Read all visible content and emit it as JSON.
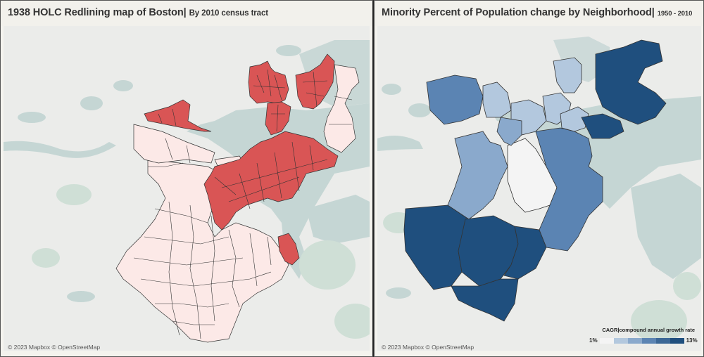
{
  "left": {
    "title": "1938 HOLC Redlining map of Boston",
    "subtitle": "By 2010 census tract",
    "attribution": "© 2023 Mapbox © OpenStreetMap",
    "colors": {
      "redlined": "#d95555",
      "other": "#fce9e7",
      "tract_border": "#333333"
    }
  },
  "right": {
    "title": "Minority Percent of Population change by Neighborhood",
    "subtitle": "1950 - 2010",
    "attribution": "© 2023 Mapbox © OpenStreetMap",
    "legend": {
      "title": "CAGR|compound annual growth rate",
      "min_label": "1%",
      "max_label": "13%",
      "colors": [
        "#f4f4f4",
        "#b3c8de",
        "#8aa9cc",
        "#5b84b3",
        "#3b6796",
        "#1f4f7e"
      ]
    }
  },
  "basemap": {
    "land": "#ebecea",
    "water": "#c5d6d4",
    "park": "#cfdfd6"
  }
}
